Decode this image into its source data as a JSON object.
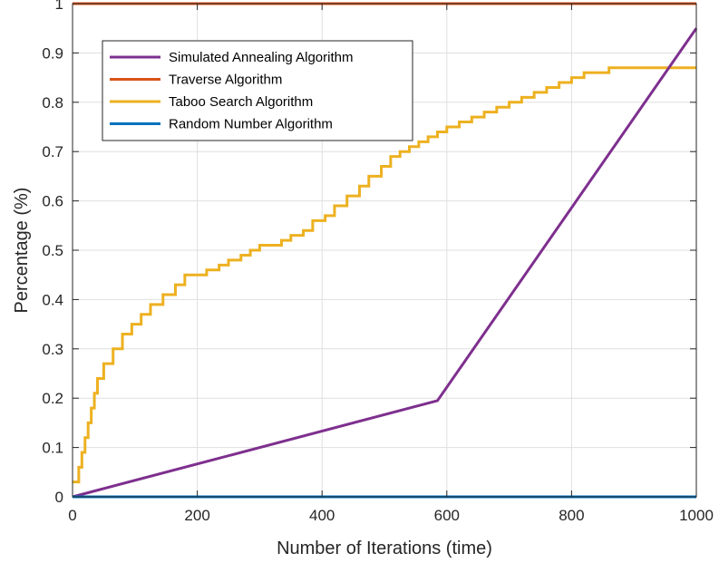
{
  "chart_data": {
    "type": "line",
    "title": "",
    "xlabel": "Number of Iterations (time)",
    "ylabel": "Percentage (%)",
    "xlim": [
      0,
      1000
    ],
    "ylim": [
      0,
      1
    ],
    "x_ticks": [
      "0",
      "200",
      "400",
      "600",
      "800",
      "1000"
    ],
    "y_ticks": [
      "0",
      "0.1",
      "0.2",
      "0.3",
      "0.4",
      "0.5",
      "0.6",
      "0.7",
      "0.8",
      "0.9",
      "1"
    ],
    "grid": true,
    "legend_position": "top-left",
    "series": [
      {
        "name": "Simulated Annealing Algorithm",
        "color": "#7E2F8E",
        "x": [
          0,
          585,
          1000
        ],
        "y": [
          0,
          0.195,
          0.95
        ]
      },
      {
        "name": "Traverse Algorithm",
        "color": "#D95319",
        "x": [
          0,
          1000
        ],
        "y": [
          1,
          1
        ]
      },
      {
        "name": "Taboo Search Algorithm",
        "color": "#EDB120",
        "step": true,
        "x": [
          0,
          10,
          15,
          20,
          25,
          30,
          35,
          40,
          45,
          50,
          55,
          65,
          80,
          95,
          110,
          125,
          135,
          145,
          155,
          165,
          180,
          200,
          215,
          235,
          250,
          270,
          285,
          300,
          320,
          335,
          350,
          370,
          385,
          405,
          420,
          440,
          460,
          475,
          495,
          510,
          525,
          540,
          555,
          570,
          585,
          600,
          620,
          640,
          660,
          680,
          700,
          720,
          740,
          760,
          780,
          800,
          820,
          840,
          860,
          880,
          900,
          920,
          940,
          960,
          980,
          1000
        ],
        "y": [
          0.03,
          0.06,
          0.09,
          0.12,
          0.15,
          0.18,
          0.21,
          0.24,
          0.24,
          0.27,
          0.27,
          0.3,
          0.33,
          0.35,
          0.37,
          0.39,
          0.39,
          0.41,
          0.41,
          0.43,
          0.45,
          0.45,
          0.46,
          0.47,
          0.48,
          0.49,
          0.5,
          0.51,
          0.51,
          0.52,
          0.53,
          0.54,
          0.56,
          0.57,
          0.59,
          0.61,
          0.63,
          0.65,
          0.67,
          0.69,
          0.7,
          0.71,
          0.72,
          0.73,
          0.74,
          0.75,
          0.76,
          0.77,
          0.78,
          0.79,
          0.8,
          0.81,
          0.82,
          0.83,
          0.84,
          0.85,
          0.86,
          0.86,
          0.87,
          0.87,
          0.87,
          0.87,
          0.87,
          0.87,
          0.87,
          0.87
        ]
      },
      {
        "name": "Random Number Algorithm",
        "color": "#0072BD",
        "x": [
          0,
          1000
        ],
        "y": [
          0,
          0
        ]
      }
    ]
  }
}
